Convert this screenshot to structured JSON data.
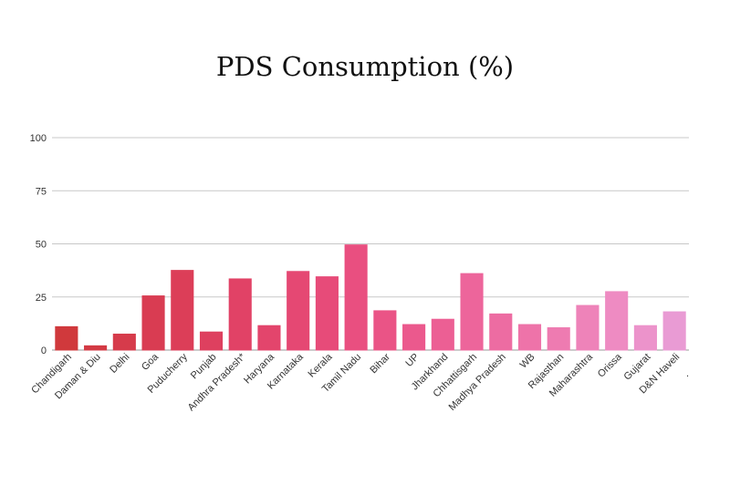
{
  "chart_data": {
    "type": "bar",
    "title": "PDS Consumption (%)",
    "xlabel": "",
    "ylabel": "",
    "ylim": [
      0,
      100
    ],
    "yticks": [
      0,
      25,
      50,
      75,
      100
    ],
    "grid": true,
    "legend": "none",
    "categories": [
      "Chandigarh",
      "Daman & Diu",
      "Delhi",
      "Goa",
      "Puducherry",
      "Punjab",
      "Andhra Pradesh*",
      "Haryana",
      "Karnataka",
      "Kerala",
      "Tamil Nadu",
      "Bihar",
      "UP",
      "Jharkhand",
      "Chhattisgarh",
      "Madhya Pradesh",
      "WB",
      "Rajasthan",
      "Maharashtra",
      "Orissa",
      "Gujarat",
      "D&N Haveli"
    ],
    "values": [
      11,
      2,
      7.5,
      25.5,
      37.5,
      8.5,
      33.5,
      11.5,
      37,
      34.5,
      49.5,
      18.5,
      12,
      14.5,
      36,
      17,
      12,
      10.5,
      21,
      27.5,
      11.5,
      18
    ],
    "colors": [
      "#d0393c",
      "#d33a44",
      "#d63b4b",
      "#d93c52",
      "#dc3e58",
      "#de405f",
      "#e14266",
      "#e3456c",
      "#e54873",
      "#e74b79",
      "#e94f80",
      "#ea5486",
      "#eb598d",
      "#ec5f94",
      "#ed659b",
      "#ed6ca2",
      "#ee73a9",
      "#ee7bb1",
      "#ee83b9",
      "#ee8bc2",
      "#ec93cb",
      "#e99bd4"
    ]
  },
  "footnote": "."
}
